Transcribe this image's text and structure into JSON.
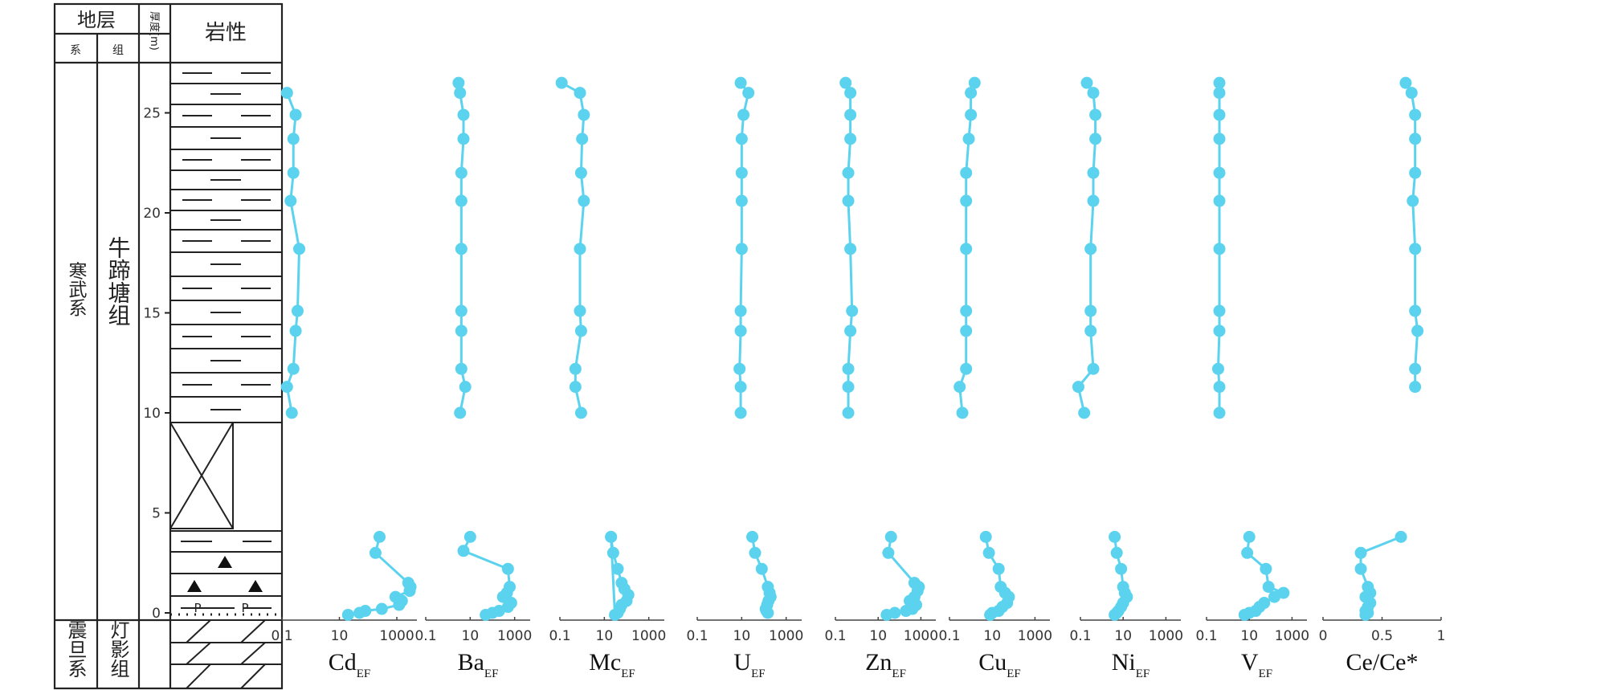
{
  "column_header": {
    "strata": "地层",
    "system": "系",
    "formation": "组",
    "thickness": "厚度(m)",
    "lithology": "岩性"
  },
  "stratigraphy": {
    "upper_system": "寒武系",
    "upper_formation": "牛蹄塘组",
    "lower_system": "震旦系",
    "lower_formation": "灯影组"
  },
  "depth_axis": {
    "min": 0,
    "max": 26.5,
    "ticks": [
      "0",
      "5",
      "10",
      "15",
      "20",
      "25"
    ]
  },
  "styling": {
    "series_color": "#5bd3ef",
    "line_color": "#222222"
  },
  "chart_data": [
    {
      "type": "line",
      "base": "Cd",
      "sub": "EF",
      "scale": "log",
      "xlim": [
        0.1,
        5000
      ],
      "tick_labels": [
        "0.1",
        "10",
        "1000"
      ],
      "upper": {
        "x": [
          0.15,
          0.3,
          0.25,
          0.25,
          0.2,
          0.4,
          0.35,
          0.3,
          0.25,
          0.15,
          0.22
        ],
        "y": [
          26,
          24.9,
          23.7,
          22.0,
          20.6,
          18.2,
          15.1,
          14.1,
          12.2,
          11.3,
          10.0
        ]
      },
      "lower": {
        "x": [
          250,
          180,
          2500,
          3000,
          2800,
          900,
          1500,
          1200,
          300,
          80,
          50,
          20
        ],
        "y": [
          3.8,
          3.0,
          1.5,
          1.3,
          1.1,
          0.8,
          0.6,
          0.4,
          0.2,
          0.1,
          0.0,
          -0.1
        ]
      }
    },
    {
      "type": "line",
      "base": "Ba",
      "sub": "EF",
      "scale": "log",
      "xlim": [
        0.1,
        5000
      ],
      "tick_labels": [
        "0.1",
        "10",
        "1000"
      ],
      "upper": {
        "x": [
          3,
          3.5,
          5,
          5,
          4,
          4,
          4,
          4,
          4,
          4,
          6,
          3.5
        ],
        "y": [
          26.5,
          26,
          24.9,
          23.7,
          22.0,
          20.6,
          18.2,
          15.1,
          14.1,
          12.2,
          11.3,
          10.0
        ]
      },
      "lower": {
        "x": [
          10,
          5,
          500,
          600,
          450,
          300,
          700,
          500,
          200,
          100,
          50
        ],
        "y": [
          3.8,
          3.1,
          2.2,
          1.3,
          1.0,
          0.8,
          0.5,
          0.3,
          0.1,
          0.0,
          -0.1
        ]
      }
    },
    {
      "type": "line",
      "base": "Mc",
      "sub": "EF",
      "scale": "log",
      "xlim": [
        0.1,
        5000
      ],
      "tick_labels": [
        "0.1",
        "10",
        "1000"
      ],
      "upper": {
        "x": [
          0.12,
          0.8,
          1.2,
          1.0,
          0.9,
          1.2,
          0.8,
          0.8,
          0.9,
          0.5,
          0.5,
          0.9
        ],
        "y": [
          26.5,
          26,
          24.9,
          23.7,
          22.0,
          20.6,
          18.2,
          15.1,
          14.1,
          12.2,
          11.3,
          10.0
        ]
      },
      "lower": {
        "x": [
          20,
          25,
          40,
          60,
          80,
          120,
          100,
          60,
          50,
          40,
          30,
          20
        ],
        "y": [
          3.8,
          3.0,
          2.2,
          1.5,
          1.2,
          0.9,
          0.6,
          0.4,
          0.2,
          0.0,
          -0.1,
          3.8
        ]
      }
    },
    {
      "type": "line",
      "base": "U",
      "sub": "EF",
      "scale": "log",
      "xlim": [
        0.1,
        5000
      ],
      "tick_labels": [
        "0.1",
        "10",
        "1000"
      ],
      "upper": {
        "x": [
          9,
          20,
          12,
          10,
          10,
          10,
          10,
          9,
          9,
          8,
          9,
          9
        ],
        "y": [
          26.5,
          26,
          24.9,
          23.7,
          22.0,
          20.6,
          18.2,
          15.1,
          14.1,
          12.2,
          11.3,
          10.0
        ]
      },
      "lower": {
        "x": [
          30,
          40,
          80,
          150,
          180,
          200,
          160,
          140,
          120,
          130,
          150
        ],
        "y": [
          3.8,
          3.0,
          2.2,
          1.3,
          1.0,
          0.8,
          0.6,
          0.4,
          0.2,
          0.1,
          0.0
        ]
      }
    },
    {
      "type": "line",
      "base": "Zn",
      "sub": "EF",
      "scale": "log",
      "xlim": [
        0.1,
        5000
      ],
      "tick_labels": [
        "0.1",
        "10",
        "1000"
      ],
      "upper": {
        "x": [
          0.3,
          0.5,
          0.5,
          0.5,
          0.4,
          0.4,
          0.5,
          0.6,
          0.5,
          0.4,
          0.4,
          0.4
        ],
        "y": [
          26.5,
          26,
          24.9,
          23.7,
          22.0,
          20.6,
          18.2,
          15.1,
          14.1,
          12.2,
          11.3,
          10.0
        ]
      },
      "lower": {
        "x": [
          40,
          30,
          500,
          800,
          700,
          500,
          300,
          600,
          400,
          200,
          60,
          25
        ],
        "y": [
          3.8,
          3.0,
          1.5,
          1.3,
          1.1,
          0.8,
          0.6,
          0.4,
          0.2,
          0.1,
          0.0,
          -0.1
        ]
      }
    },
    {
      "type": "line",
      "base": "Cu",
      "sub": "EF",
      "scale": "log",
      "xlim": [
        0.1,
        5000
      ],
      "tick_labels": [
        "0.1",
        "10",
        "1000"
      ],
      "upper": {
        "x": [
          1.5,
          1.0,
          1.0,
          0.8,
          0.6,
          0.6,
          0.6,
          0.6,
          0.6,
          0.6,
          0.3,
          0.4
        ],
        "y": [
          26.5,
          26,
          24.9,
          23.7,
          22.0,
          20.6,
          18.2,
          15.1,
          14.1,
          12.2,
          11.3,
          10.0
        ]
      },
      "lower": {
        "x": [
          5,
          7,
          20,
          25,
          40,
          60,
          50,
          30,
          20,
          10,
          8
        ],
        "y": [
          3.8,
          3.0,
          2.2,
          1.3,
          1.0,
          0.8,
          0.5,
          0.3,
          0.1,
          0.0,
          -0.1
        ]
      }
    },
    {
      "type": "line",
      "base": "Ni",
      "sub": "EF",
      "scale": "log",
      "xlim": [
        0.1,
        5000
      ],
      "tick_labels": [
        "0.1",
        "10",
        "1000"
      ],
      "upper": {
        "x": [
          0.2,
          0.4,
          0.5,
          0.5,
          0.4,
          0.4,
          0.3,
          0.3,
          0.3,
          0.4,
          0.08,
          0.15
        ],
        "y": [
          26.5,
          26,
          24.9,
          23.7,
          22.0,
          20.6,
          18.2,
          15.1,
          14.1,
          12.2,
          11.3,
          10.0
        ]
      },
      "lower": {
        "x": [
          4,
          5,
          8,
          10,
          12,
          15,
          10,
          8,
          6,
          5,
          4
        ],
        "y": [
          3.8,
          3.0,
          2.2,
          1.3,
          1.0,
          0.8,
          0.5,
          0.3,
          0.1,
          0.0,
          -0.1
        ]
      }
    },
    {
      "type": "line",
      "base": "V",
      "sub": "EF",
      "scale": "log",
      "xlim": [
        0.1,
        5000
      ],
      "tick_labels": [
        "0.1",
        "10",
        "1000"
      ],
      "upper": {
        "x": [
          0.4,
          0.4,
          0.4,
          0.4,
          0.4,
          0.4,
          0.4,
          0.4,
          0.4,
          0.35,
          0.4,
          0.4
        ],
        "y": [
          26.5,
          26,
          24.9,
          23.7,
          22.0,
          20.6,
          18.2,
          15.1,
          14.1,
          12.2,
          11.3,
          10.0
        ]
      },
      "lower": {
        "x": [
          10,
          8,
          60,
          80,
          400,
          150,
          50,
          30,
          20,
          10,
          6
        ],
        "y": [
          3.8,
          3.0,
          2.2,
          1.3,
          1.0,
          0.8,
          0.5,
          0.3,
          0.1,
          0.0,
          -0.1
        ]
      }
    },
    {
      "type": "line",
      "base": "Ce/Ce*",
      "sub": "",
      "scale": "linear",
      "xlim": [
        0,
        1
      ],
      "tick_labels": [
        "0",
        "0.5",
        "1"
      ],
      "upper": {
        "x": [
          0.7,
          0.75,
          0.78,
          0.78,
          0.78,
          0.76,
          0.78,
          0.78,
          0.8,
          0.78,
          0.78
        ],
        "y": [
          26.5,
          26,
          24.9,
          23.7,
          22.0,
          20.6,
          18.2,
          15.1,
          14.1,
          12.2,
          11.3
        ]
      },
      "lower": {
        "x": [
          0.66,
          0.32,
          0.32,
          0.38,
          0.4,
          0.36,
          0.4,
          0.38,
          0.36,
          0.38,
          0.36
        ],
        "y": [
          3.8,
          3.0,
          2.2,
          1.3,
          1.0,
          0.8,
          0.5,
          0.3,
          0.1,
          0.0,
          -0.1
        ]
      }
    }
  ]
}
